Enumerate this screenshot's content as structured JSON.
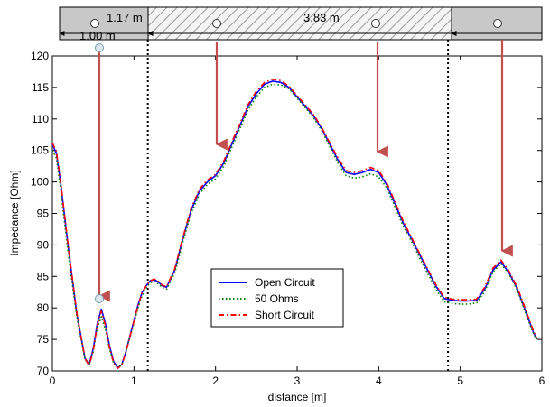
{
  "chart_data": {
    "type": "line",
    "xlabel": "distance [m]",
    "ylabel": "Impedance [Ohm]",
    "xlim": [
      0,
      6
    ],
    "ylim": [
      70,
      120
    ],
    "xticks": [
      0,
      1,
      2,
      3,
      4,
      5,
      6
    ],
    "yticks": [
      70,
      75,
      80,
      85,
      90,
      95,
      100,
      105,
      110,
      115,
      120
    ],
    "grid": false,
    "legend_position": "bottom-center",
    "series": [
      {
        "name": "Open Circuit",
        "color": "#0000ff",
        "style": "solid",
        "x": [
          0,
          0.05,
          0.1,
          0.2,
          0.3,
          0.4,
          0.45,
          0.5,
          0.55,
          0.6,
          0.65,
          0.7,
          0.75,
          0.8,
          0.85,
          0.9,
          0.95,
          1.0,
          1.05,
          1.1,
          1.15,
          1.2,
          1.25,
          1.3,
          1.35,
          1.4,
          1.5,
          1.6,
          1.7,
          1.8,
          1.9,
          2.0,
          2.1,
          2.2,
          2.3,
          2.4,
          2.5,
          2.6,
          2.7,
          2.8,
          2.9,
          3.0,
          3.1,
          3.2,
          3.3,
          3.4,
          3.5,
          3.6,
          3.7,
          3.8,
          3.9,
          4.0,
          4.1,
          4.2,
          4.3,
          4.4,
          4.5,
          4.6,
          4.7,
          4.8,
          4.9,
          5.0,
          5.1,
          5.2,
          5.3,
          5.4,
          5.5,
          5.6,
          5.7,
          5.8,
          5.9,
          5.94
        ],
        "values": [
          106,
          104.5,
          100,
          89,
          79,
          72,
          71,
          73.5,
          77.5,
          79.8,
          77.5,
          74,
          71.5,
          70.5,
          71,
          73,
          75.5,
          78,
          80.5,
          82.5,
          83.5,
          84.3,
          84.5,
          84.1,
          83.5,
          83.3,
          86,
          91,
          95.5,
          98.5,
          100,
          101,
          103,
          106,
          109,
          112,
          114,
          115.5,
          116,
          115.8,
          115,
          113.5,
          112,
          110.5,
          108.5,
          106,
          103.5,
          101.5,
          101.2,
          101.5,
          102,
          101.5,
          99.5,
          96.5,
          93.5,
          91,
          88.5,
          86,
          83.5,
          81.5,
          81.2,
          81.1,
          81.1,
          81.2,
          83,
          86,
          87.3,
          85.5,
          83,
          79.5,
          76,
          75
        ]
      },
      {
        "name": "50 Ohms",
        "color": "#008000",
        "style": "dotted",
        "x": [
          0,
          0.05,
          0.1,
          0.2,
          0.3,
          0.4,
          0.45,
          0.5,
          0.55,
          0.6,
          0.65,
          0.7,
          0.75,
          0.8,
          0.85,
          0.9,
          0.95,
          1.0,
          1.05,
          1.1,
          1.15,
          1.2,
          1.25,
          1.3,
          1.35,
          1.4,
          1.5,
          1.6,
          1.7,
          1.8,
          1.9,
          2.0,
          2.1,
          2.2,
          2.3,
          2.4,
          2.5,
          2.6,
          2.7,
          2.8,
          2.9,
          3.0,
          3.1,
          3.2,
          3.3,
          3.4,
          3.5,
          3.6,
          3.7,
          3.8,
          3.9,
          4.0,
          4.1,
          4.2,
          4.3,
          4.4,
          4.5,
          4.6,
          4.7,
          4.8,
          4.9,
          5.0,
          5.1,
          5.2,
          5.3,
          5.4,
          5.5,
          5.6,
          5.7,
          5.8,
          5.9,
          5.94
        ],
        "values": [
          105,
          103.8,
          99,
          88,
          78.5,
          71.8,
          71,
          73,
          76.8,
          78.6,
          76.5,
          73.5,
          71.2,
          70.5,
          71,
          73,
          75.3,
          77.6,
          80,
          82,
          83.2,
          84,
          84.2,
          83.8,
          83.2,
          83,
          85.5,
          90.5,
          95,
          98,
          99.6,
          100.5,
          102.5,
          105.5,
          108.5,
          111.5,
          113.5,
          115,
          115.5,
          115.4,
          114.8,
          113.3,
          111.8,
          110.2,
          108.2,
          105.6,
          103,
          101,
          100.6,
          100.8,
          101.3,
          100.8,
          99,
          96,
          93,
          90.6,
          88,
          85.5,
          83,
          81,
          80.7,
          80.6,
          80.6,
          80.8,
          82.6,
          85.7,
          87,
          85.3,
          82.8,
          79.2,
          75.8,
          75
        ]
      },
      {
        "name": "Short Circuit",
        "color": "#ff0000",
        "style": "dashdot",
        "x": [
          0,
          0.05,
          0.1,
          0.2,
          0.3,
          0.4,
          0.45,
          0.5,
          0.55,
          0.6,
          0.65,
          0.7,
          0.75,
          0.8,
          0.85,
          0.9,
          0.95,
          1.0,
          1.05,
          1.1,
          1.15,
          1.2,
          1.25,
          1.3,
          1.35,
          1.4,
          1.5,
          1.6,
          1.7,
          1.8,
          1.9,
          2.0,
          2.1,
          2.2,
          2.3,
          2.4,
          2.5,
          2.6,
          2.7,
          2.8,
          2.9,
          3.0,
          3.1,
          3.2,
          3.3,
          3.4,
          3.5,
          3.6,
          3.7,
          3.8,
          3.9,
          4.0,
          4.1,
          4.2,
          4.3,
          4.4,
          4.5,
          4.6,
          4.7,
          4.8,
          4.9,
          5.0,
          5.1,
          5.2,
          5.3,
          5.4,
          5.5,
          5.6,
          5.7,
          5.8,
          5.9,
          5.94
        ],
        "values": [
          106.2,
          104.8,
          100.2,
          89.2,
          79.2,
          72,
          70.8,
          73.2,
          77.3,
          79.5,
          77.2,
          73.8,
          71.3,
          70.4,
          70.9,
          72.9,
          75.4,
          77.9,
          80.4,
          82.4,
          83.5,
          84.3,
          84.6,
          84.2,
          83.6,
          83.4,
          86.2,
          91.2,
          95.8,
          98.8,
          100.3,
          101.2,
          103.3,
          106.3,
          109.3,
          112.3,
          114.4,
          115.8,
          116.3,
          116.1,
          115.2,
          113.7,
          112.2,
          110.7,
          108.7,
          106.2,
          103.8,
          101.8,
          101.5,
          101.8,
          102.3,
          101.8,
          99.8,
          96.8,
          93.8,
          91.2,
          88.7,
          86.2,
          83.7,
          81.7,
          81.4,
          81.3,
          81.3,
          81.4,
          83.3,
          86.3,
          87.6,
          85.8,
          83.2,
          79.8,
          76.2,
          75.2
        ]
      }
    ],
    "segments": {
      "label_1": "1.00 m",
      "label_2": "1.17 m",
      "label_3": "3.83 m",
      "boundaries_x": [
        1.17,
        4.85
      ]
    }
  }
}
